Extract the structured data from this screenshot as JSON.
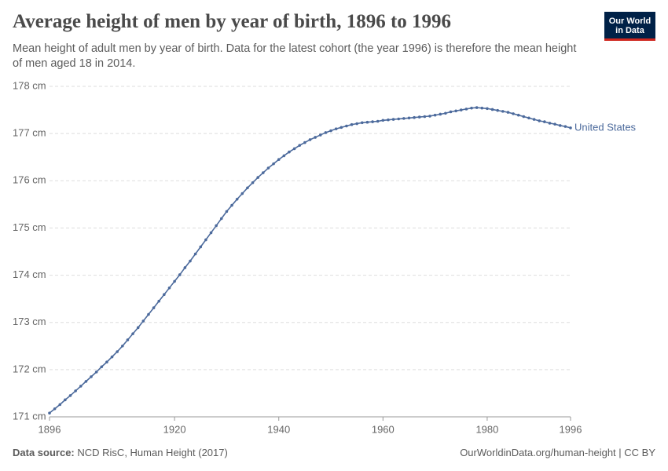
{
  "chart_data": {
    "type": "line",
    "title": "Average height of men by year of birth, 1896 to 1996",
    "subtitle": "Mean height of adult men by year of birth. Data for the latest cohort (the year 1996) is therefore the mean height of men aged 18 in 2014.",
    "logo": [
      "Our World",
      "in Data"
    ],
    "source_label": "Data source:",
    "source": "NCD RisC, Human Height (2017)",
    "url": "OurWorldinData.org/human-height | CC BY",
    "x": [
      1896,
      1897,
      1898,
      1899,
      1900,
      1901,
      1902,
      1903,
      1904,
      1905,
      1906,
      1907,
      1908,
      1909,
      1910,
      1911,
      1912,
      1913,
      1914,
      1915,
      1916,
      1917,
      1918,
      1919,
      1920,
      1921,
      1922,
      1923,
      1924,
      1925,
      1926,
      1927,
      1928,
      1929,
      1930,
      1931,
      1932,
      1933,
      1934,
      1935,
      1936,
      1937,
      1938,
      1939,
      1940,
      1941,
      1942,
      1943,
      1944,
      1945,
      1946,
      1947,
      1948,
      1949,
      1950,
      1951,
      1952,
      1953,
      1954,
      1955,
      1956,
      1957,
      1958,
      1959,
      1960,
      1961,
      1962,
      1963,
      1964,
      1965,
      1966,
      1967,
      1968,
      1969,
      1970,
      1971,
      1972,
      1973,
      1974,
      1975,
      1976,
      1977,
      1978,
      1979,
      1980,
      1981,
      1982,
      1983,
      1984,
      1985,
      1986,
      1987,
      1988,
      1989,
      1990,
      1991,
      1992,
      1993,
      1994,
      1995,
      1996
    ],
    "series": [
      {
        "name": "United States",
        "color": "#4c6a9c",
        "values": [
          171.08,
          171.17,
          171.26,
          171.36,
          171.45,
          171.55,
          171.65,
          171.75,
          171.85,
          171.95,
          172.06,
          172.16,
          172.27,
          172.38,
          172.5,
          172.63,
          172.76,
          172.89,
          173.03,
          173.17,
          173.31,
          173.45,
          173.59,
          173.73,
          173.87,
          174.01,
          174.16,
          174.3,
          174.45,
          174.6,
          174.75,
          174.9,
          175.05,
          175.2,
          175.35,
          175.48,
          175.61,
          175.73,
          175.85,
          175.96,
          176.07,
          176.17,
          176.27,
          176.36,
          176.45,
          176.53,
          176.61,
          176.68,
          176.75,
          176.81,
          176.87,
          176.92,
          176.97,
          177.02,
          177.06,
          177.1,
          177.13,
          177.16,
          177.19,
          177.21,
          177.23,
          177.24,
          177.25,
          177.26,
          177.28,
          177.29,
          177.3,
          177.31,
          177.32,
          177.33,
          177.34,
          177.35,
          177.36,
          177.37,
          177.39,
          177.41,
          177.43,
          177.46,
          177.48,
          177.5,
          177.52,
          177.54,
          177.55,
          177.54,
          177.53,
          177.51,
          177.49,
          177.47,
          177.45,
          177.42,
          177.39,
          177.36,
          177.33,
          177.3,
          177.27,
          177.25,
          177.22,
          177.2,
          177.17,
          177.15,
          177.12
        ]
      }
    ],
    "xlim": [
      1896,
      1996
    ],
    "xticks": [
      1896,
      1920,
      1940,
      1960,
      1980,
      1996
    ],
    "ylim": [
      171,
      178
    ],
    "yticks": [
      {
        "value": 171,
        "label": "171 cm"
      },
      {
        "value": 172,
        "label": "172 cm"
      },
      {
        "value": 173,
        "label": "173 cm"
      },
      {
        "value": 174,
        "label": "174 cm"
      },
      {
        "value": 175,
        "label": "175 cm"
      },
      {
        "value": 176,
        "label": "176 cm"
      },
      {
        "value": 177,
        "label": "177 cm"
      },
      {
        "value": 178,
        "label": "178 cm"
      }
    ],
    "grid": true
  }
}
